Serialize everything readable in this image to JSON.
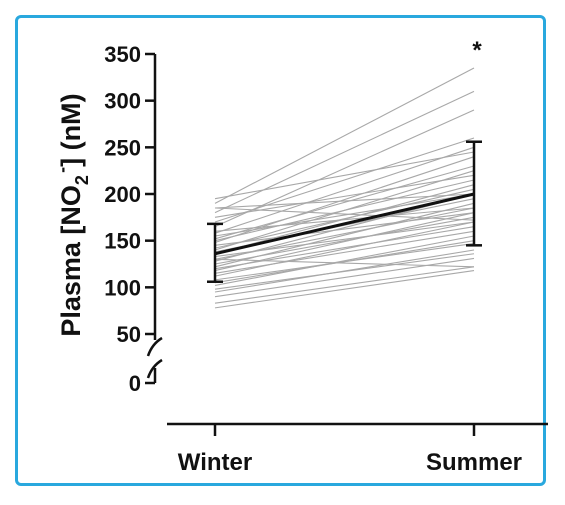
{
  "chart_data": {
    "type": "line",
    "ylabel_parts": {
      "prefix": "Plasma [NO",
      "sub": "2",
      "sup": "-",
      "suffix": "] (nM)"
    },
    "categories": [
      "Winter",
      "Summer"
    ],
    "yticks": [
      350,
      300,
      250,
      200,
      150,
      100,
      50,
      0
    ],
    "y_axis_break": "between 0 and 50",
    "mean": {
      "values": [
        136,
        200
      ]
    },
    "error_bars": [
      {
        "low": 106,
        "high": 168
      },
      {
        "low": 145,
        "high": 256
      }
    ],
    "significance_marker": "*",
    "individuals": [
      [
        83,
        122
      ],
      [
        78,
        118
      ],
      [
        90,
        131
      ],
      [
        95,
        140
      ],
      [
        98,
        136
      ],
      [
        102,
        155
      ],
      [
        105,
        150
      ],
      [
        108,
        147
      ],
      [
        112,
        170
      ],
      [
        115,
        160
      ],
      [
        118,
        180
      ],
      [
        120,
        165
      ],
      [
        122,
        190
      ],
      [
        125,
        175
      ],
      [
        128,
        200
      ],
      [
        130,
        185
      ],
      [
        133,
        170
      ],
      [
        136,
        210
      ],
      [
        138,
        195
      ],
      [
        140,
        225
      ],
      [
        142,
        205
      ],
      [
        145,
        180
      ],
      [
        148,
        240
      ],
      [
        150,
        215
      ],
      [
        152,
        230
      ],
      [
        155,
        200
      ],
      [
        158,
        250
      ],
      [
        160,
        185
      ],
      [
        165,
        290
      ],
      [
        170,
        260
      ],
      [
        175,
        220
      ],
      [
        180,
        310
      ],
      [
        185,
        200
      ],
      [
        190,
        335
      ],
      [
        195,
        245
      ],
      [
        185,
        172
      ],
      [
        130,
        122
      ]
    ]
  },
  "colors": {
    "frame": "#29a8de",
    "mean_line": "#111111",
    "individual_lines": "#a8a8a8",
    "axis": "#111111"
  }
}
